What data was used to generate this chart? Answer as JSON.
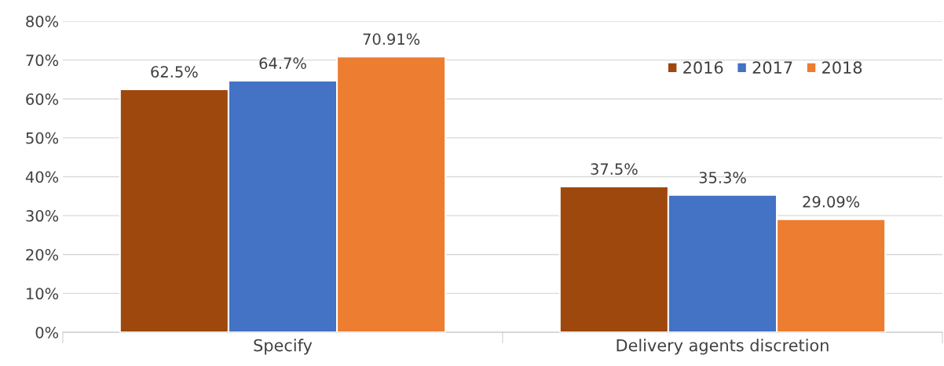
{
  "chart_data": {
    "type": "bar",
    "categories": [
      "Specify",
      "Delivery agents discretion"
    ],
    "series": [
      {
        "name": "2016",
        "color": "#9e480e",
        "values": [
          62.5,
          37.5
        ],
        "value_labels": [
          "62.5%",
          "37.5%"
        ]
      },
      {
        "name": "2017",
        "color": "#4472c4",
        "values": [
          64.7,
          35.3
        ],
        "value_labels": [
          "64.7%",
          "35.3%"
        ]
      },
      {
        "name": "2018",
        "color": "#ed7d31",
        "values": [
          70.91,
          29.09
        ],
        "value_labels": [
          "70.91%",
          "29.09%"
        ]
      }
    ],
    "ylim": [
      0,
      80
    ],
    "yticks": [
      {
        "value": 0,
        "label": "0%"
      },
      {
        "value": 10,
        "label": "10%"
      },
      {
        "value": 20,
        "label": "20%"
      },
      {
        "value": 30,
        "label": "30%"
      },
      {
        "value": 40,
        "label": "40%"
      },
      {
        "value": 50,
        "label": "50%"
      },
      {
        "value": 60,
        "label": "60%"
      },
      {
        "value": 70,
        "label": "70%"
      },
      {
        "value": 80,
        "label": "80%"
      }
    ],
    "grid": "y",
    "legend": "top right"
  }
}
